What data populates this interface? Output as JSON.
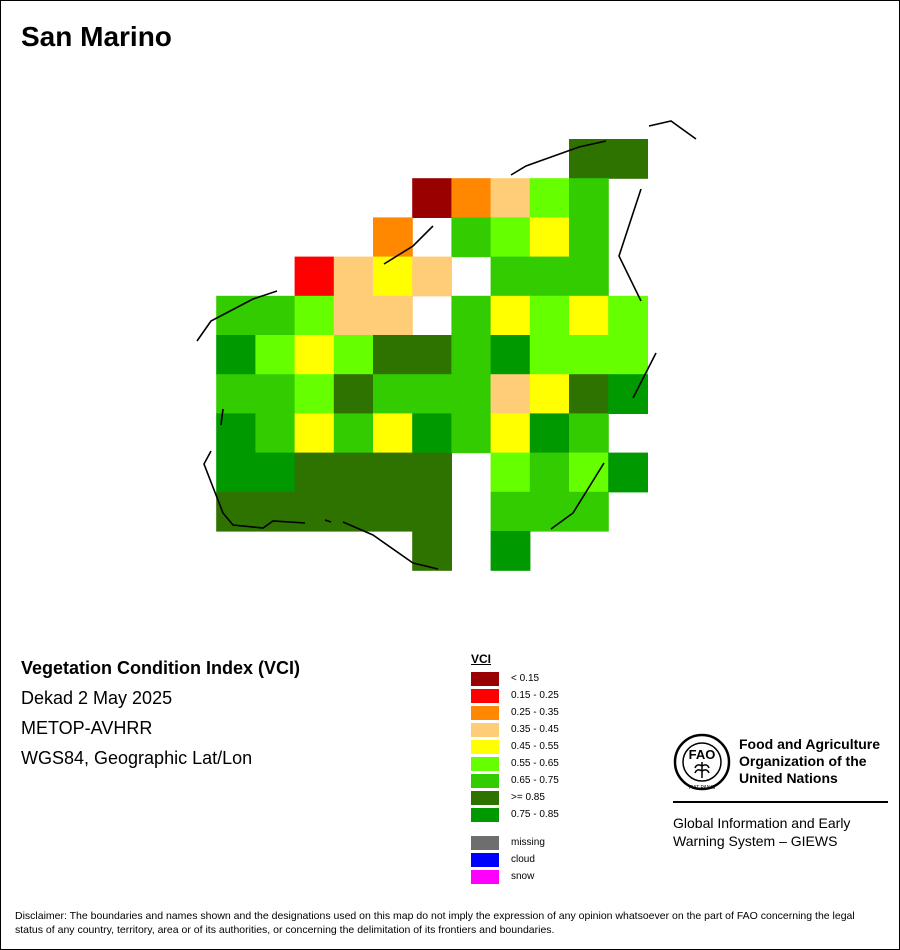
{
  "map": {
    "title": "San Marino",
    "boundary_color": "#000000",
    "grid": [
      "..........VG",
      "......DO2LM.",
      ".....O.ML3M.",
      "...RP3P.MMM.",
      ".MML2P.M3L3L",
      ".HL3LGGMHLLL",
      ".MMLGMMMP3GH",
      ".HM3M3HM3HM.",
      ".HHGGGG.LMLH",
      ".GGGGGG.MMM.",
      "......G.H..."
    ]
  },
  "info": {
    "index_name": "Vegetation Condition Index (VCI)",
    "period": "Dekad 2 May 2025",
    "sensor": "METOP-AVHRR",
    "projection": "WGS84, Geographic Lat/Lon"
  },
  "legend": {
    "title": "VCI",
    "classes": [
      {
        "label": "< 0.15",
        "color": "#990000"
      },
      {
        "label": "0.15 - 0.25",
        "color": "#ff0000"
      },
      {
        "label": "0.25 - 0.35",
        "color": "#ff8800"
      },
      {
        "label": "0.35 - 0.45",
        "color": "#ffcc77"
      },
      {
        "label": "0.45 - 0.55",
        "color": "#ffff00"
      },
      {
        "label": "0.55 - 0.65",
        "color": "#66ff00"
      },
      {
        "label": "0.65 - 0.75",
        "color": "#33cc00"
      },
      {
        "label": ">= 0.85",
        "color": "#2e7300"
      },
      {
        "label": "0.75 - 0.85",
        "color": "#009900"
      }
    ],
    "other": [
      {
        "label": "missing",
        "color": "#6e6e6e"
      },
      {
        "label": "cloud",
        "color": "#0000ff"
      },
      {
        "label": "snow",
        "color": "#ff00ff"
      }
    ]
  },
  "logo": {
    "emblem_text": "FAO FIAT PANIS",
    "org_name": "Food and Agriculture Organization of the United Nations",
    "system_name": "Global Information and Early Warning System – GIEWS"
  },
  "disclaimer": "Disclaimer: The boundaries and names shown and the designations used on this map do not imply the expression of any opinion whatsoever on the part of FAO concerning the legal status of any country, territory, area or of its authorities, or concerning the delimitation of its frontiers and boundaries."
}
